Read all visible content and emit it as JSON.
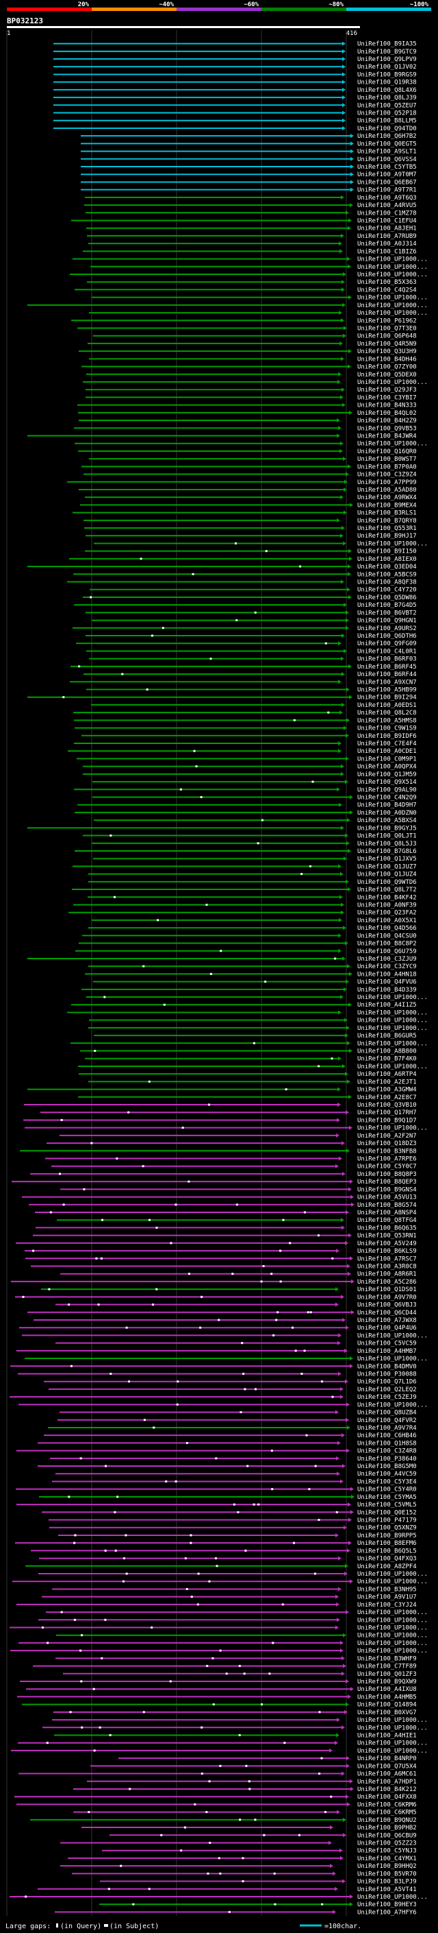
{
  "identity_scale": {
    "labels": [
      "20%",
      "~40%",
      "~60%",
      "~80%",
      "~100%"
    ],
    "colors": [
      "#ff0000",
      "#ff8c00",
      "#9932cc",
      "#008000",
      "#00c0d8"
    ]
  },
  "query": {
    "name": "BP032123",
    "start": "1",
    "end": "416",
    "bar_color": "#ffffff"
  },
  "colors": {
    "background": "#000000",
    "text": "#ffffff",
    "grid": "#333333",
    "gap_dot": "#ffffff",
    "cyan": "#00c0d8",
    "green": "#00a000",
    "magenta": "#c030c0"
  },
  "hits": [
    "UniRef100_B9IA35",
    "UniRef100_B9GTC9",
    "UniRef100_Q9LPV9",
    "UniRef100_Q1JV02",
    "UniRef100_B9RGS9",
    "UniRef100_Q19R38",
    "UniRef100_Q8L4X6",
    "UniRef100_Q8LJ39",
    "UniRef100_Q5ZEU7",
    "UniRef100_Q52P18",
    "UniRef100_B8LLM5",
    "UniRef100_Q94TD0",
    "UniRef100_Q6H7B2",
    "UniRef100_Q0EGT5",
    "UniRef100_A9SLT1",
    "UniRef100_Q6VSS4",
    "UniRef100_C5YTB5",
    "UniRef100_A9T0M7",
    "UniRef100_Q6EB67",
    "UniRef100_A9T7R1",
    "UniRef100_A9T6Q3",
    "UniRef100_A4RVU5",
    "UniRef100_C1MZ78",
    "UniRef100_C1EFU4",
    "UniRef100_A8JEH1",
    "UniRef100_A7RUB9",
    "UniRef100_A0J314",
    "UniRef100_C1BIZ6",
    "UniRef100_UP1000...",
    "UniRef100_UP1000...",
    "UniRef100_UP1000...",
    "UniRef100_B5X363",
    "UniRef100_C4Q2S4",
    "UniRef100_UP1000...",
    "UniRef100_UP1000...",
    "UniRef100_UP1000...",
    "UniRef100_P61962",
    "UniRef100_Q7T3E0",
    "UniRef100_Q6P648",
    "UniRef100_Q4R5N9",
    "UniRef100_Q3U3H9",
    "UniRef100_B4DH46",
    "UniRef100_Q7ZY00",
    "UniRef100_Q5DEX0",
    "UniRef100_UP1000...",
    "UniRef100_Q29JF3",
    "UniRef100_C3YBI7",
    "UniRef100_B4N333",
    "UniRef100_B4QL02",
    "UniRef100_B4H2Z9",
    "UniRef100_Q9VB53",
    "UniRef100_B4JWR4",
    "UniRef100_UP1000...",
    "UniRef100_Q16QR0",
    "UniRef100_B0WST7",
    "UniRef100_B7P0A0",
    "UniRef100_C3Z9Z4",
    "UniRef100_A7PP99",
    "UniRef100_A5AD80",
    "UniRef100_A9RWX4",
    "UniRef100_B9MEX4",
    "UniRef100_B3RLS1",
    "UniRef100_B7QRY8",
    "UniRef100_Q553R1",
    "UniRef100_B9HJ17",
    "UniRef100_UP1000...",
    "UniRef100_B9I150",
    "UniRef100_A8IEX0",
    "UniRef100_Q3ED04",
    "UniRef100_A5BCS9",
    "UniRef100_A8QF38",
    "UniRef100_C4Y720",
    "UniRef100_Q5DW86",
    "UniRef100_B7G4D5",
    "UniRef100_B6VBT2",
    "UniRef100_Q9HGN1",
    "UniRef100_A9URS2",
    "UniRef100_Q6DTH6",
    "UniRef100_Q9FG09",
    "UniRef100_C4L0R1",
    "UniRef100_B6RF03",
    "UniRef100_B6RF45",
    "UniRef100_B6RF44",
    "UniRef100_A9XCN7",
    "UniRef100_A5HB99",
    "UniRef100_B9I294",
    "UniRef100_A0EDS1",
    "UniRef100_Q8L2C8",
    "UniRef100_A5HMS8",
    "UniRef100_C9W1S9",
    "UniRef100_B9IDF6",
    "UniRef100_C7E4F4",
    "UniRef100_A0CDE1",
    "UniRef100_C0M9P1",
    "UniRef100_A0QPX4",
    "UniRef100_Q1JM59",
    "UniRef100_Q9X514",
    "UniRef100_Q9AL90",
    "UniRef100_C4N2Q9",
    "UniRef100_B4D9H7",
    "UniRef100_A0DZN0",
    "UniRef100_A5BXS4",
    "UniRef100_B9GYJ5",
    "UniRef100_Q0LJT1",
    "UniRef100_Q8L5J3",
    "UniRef100_B7G8L6",
    "UniRef100_Q1JXV5",
    "UniRef100_Q1JUZ7",
    "UniRef100_Q1JUZ4",
    "UniRef100_Q9WTD6",
    "UniRef100_Q8L7T2",
    "UniRef100_B4KF42",
    "UniRef100_A0NF39",
    "UniRef100_Q23FA2",
    "UniRef100_A0X5X1",
    "UniRef100_Q4D566",
    "UniRef100_Q4CSU0",
    "UniRef100_B8C8P2",
    "UniRef100_Q6U759",
    "UniRef100_C3ZJU9",
    "UniRef100_C3ZYC9",
    "UniRef100_A4HN18",
    "UniRef100_Q4FVU6",
    "UniRef100_B4D339",
    "UniRef100_UP1000...",
    "UniRef100_A4I1Z5",
    "UniRef100_UP1000...",
    "UniRef100_UP1000...",
    "UniRef100_UP1000...",
    "UniRef100_B6GUR5",
    "UniRef100_UP1000...",
    "UniRef100_A8B800",
    "UniRef100_B7F4K0",
    "UniRef100_UP1000...",
    "UniRef100_A6RTP4",
    "UniRef100_A2EJT1",
    "UniRef100_A3GMW4",
    "UniRef100_A2E8C7",
    "UniRef100_Q3VB10",
    "UniRef100_Q17RH7",
    "UniRef100_B9Q1D7",
    "UniRef100_UP1000...",
    "UniRef100_A2F2N7",
    "UniRef100_Q18DZ3",
    "UniRef100_B3NFB8",
    "UniRef100_A7RPE6",
    "UniRef100_C5Y0C7",
    "UniRef100_B8Q8P3",
    "UniRef100_B8QEP3",
    "UniRef100_B9GNS4",
    "UniRef100_A5VU13",
    "UniRef100_B8G574",
    "UniRef100_A8NSP4",
    "UniRef100_Q8TFG4",
    "UniRef100_B6Q635",
    "UniRef100_Q53RN1",
    "UniRef100_A5V249",
    "UniRef100_B6KLS9",
    "UniRef100_A7RSC7",
    "UniRef100_A3R0C8",
    "UniRef100_A8R6R1",
    "UniRef100_A5C286",
    "UniRef100_Q1DS01",
    "UniRef100_A9V7R0",
    "UniRef100_Q6VBJ3",
    "UniRef100_Q6CD44",
    "UniRef100_A7JWX8",
    "UniRef100_Q4P4U6",
    "UniRef100_UP1000...",
    "UniRef100_C5VC59",
    "UniRef100_A4HMB7",
    "UniRef100_UP1000...",
    "UniRef100_B4DMV0",
    "UniRef100_P30088",
    "UniRef100_Q7L1D6",
    "UniRef100_Q2LEQ2",
    "UniRef100_C5ZEJ9",
    "UniRef100_UP1000...",
    "UniRef100_Q8UZB4",
    "UniRef100_Q4FVR2",
    "UniRef100_A9V7R4",
    "UniRef100_C6HB46",
    "UniRef100_Q1H8S8",
    "UniRef100_C3Z4R8",
    "UniRef100_P38640",
    "UniRef100_B8G5M0",
    "UniRef100_A4VC59",
    "UniRef100_C5Y3E4",
    "UniRef100_C5Y4R0",
    "UniRef100_C5YMA5",
    "UniRef100_C5VML5",
    "UniRef100_Q0E152",
    "UniRef100_P47179",
    "UniRef100_Q5XNZ9",
    "UniRef100_B9RPP5",
    "UniRef100_B8EFM6",
    "UniRef100_B6Q5L5",
    "UniRef100_Q4FXQ3",
    "UniRef100_A8ZPF4",
    "UniRef100_UP1000...",
    "UniRef100_UP1000...",
    "UniRef100_B3NH95",
    "UniRef100_A9V1U7",
    "UniRef100_C3YJ24",
    "UniRef100_UP1000...",
    "UniRef100_UP1000...",
    "UniRef100_UP1000...",
    "UniRef100_UP1000...",
    "UniRef100_UP1000...",
    "UniRef100_UP1000...",
    "UniRef100_B3WHF9",
    "UniRef100_C7TF89",
    "UniRef100_Q01ZF3",
    "UniRef100_B9QXW9",
    "UniRef100_A4IXU8",
    "UniRef100_A4HMB5",
    "UniRef100_Q14894",
    "UniRef100_B0XVG7",
    "UniRef100_UP1000...",
    "UniRef100_UP1000...",
    "UniRef100_A4HIE1",
    "UniRef100_UP1000...",
    "UniRef100_UP1000...",
    "UniRef100_B4NRP0",
    "UniRef100_Q7U5X4",
    "UniRef100_A6MC61",
    "UniRef100_A7HDP1",
    "UniRef100_B4K212",
    "UniRef100_Q4FXX8",
    "UniRef100_C6KRM6",
    "UniRef100_C6KRM5",
    "UniRef100_B9QNU2",
    "UniRef100_B9PHB2",
    "UniRef100_Q6CBU9",
    "UniRef100_Q5ZZ23",
    "UniRef100_C5YNJ3",
    "UniRef100_C4YMX1",
    "UniRef100_B9HHQ2",
    "UniRef100_B5VR70",
    "UniRef100_B3LPJ9",
    "UniRef100_A5VT41",
    "UniRef100_UP1000...",
    "UniRef100_B9HEY3",
    "UniRef100_A7HFY6"
  ],
  "legend": {
    "gaps_label": "Large gaps:",
    "query_gap_label": "(in Query)",
    "subject_gap_label": "(in Subject)",
    "scale_label": "=100char."
  }
}
